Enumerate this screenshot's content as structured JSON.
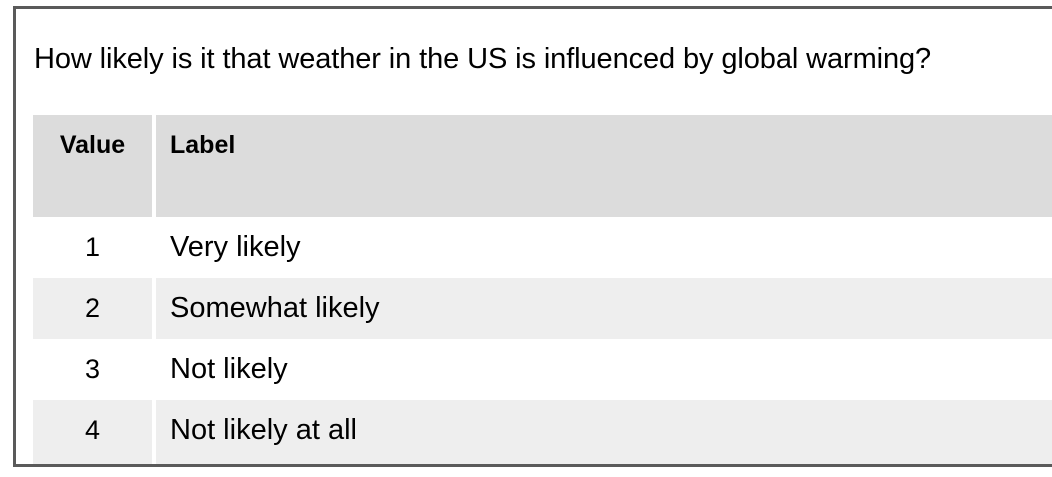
{
  "question": "How likely is it that weather in the US is influenced by global warming?",
  "table": {
    "headers": {
      "value": "Value",
      "label": "Label"
    },
    "rows": [
      {
        "value": "1",
        "label": "Very likely"
      },
      {
        "value": "2",
        "label": "Somewhat likely"
      },
      {
        "value": "3",
        "label": "Not likely"
      },
      {
        "value": "4",
        "label": "Not likely at all"
      }
    ]
  },
  "colors": {
    "border": "#5a5a5a",
    "header_bg": "#dcdcdc",
    "stripe_bg": "#eeeeee",
    "row_bg": "#ffffff"
  }
}
